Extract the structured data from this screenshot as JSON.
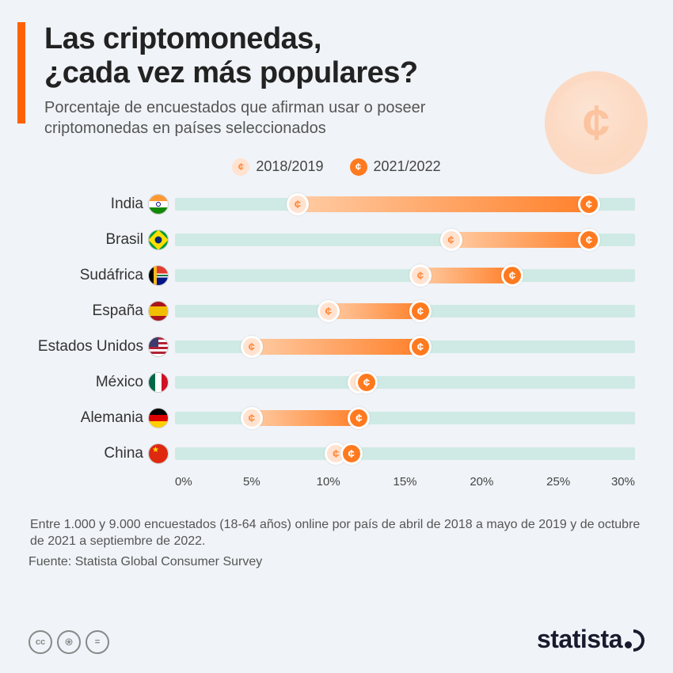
{
  "title_line1": "Las criptomonedas,",
  "title_line2": "¿cada vez más populares?",
  "subtitle": "Porcentaje de encuestados que afirman usar o poseer criptomonedas en países seleccionados",
  "legend": {
    "period_a": "2018/2019",
    "period_b": "2021/2022",
    "color_a_fill": "#ffe3d0",
    "color_a_text": "#ff8a3d",
    "color_b_fill": "#ff7a1f",
    "color_b_text": "#ffffff"
  },
  "chart": {
    "type": "dumbbell",
    "xmin": 0,
    "xmax": 30,
    "xtick_step": 5,
    "xticks": [
      "0%",
      "5%",
      "10%",
      "15%",
      "20%",
      "25%",
      "30%"
    ],
    "track_color": "#cfeae4",
    "bar_gradient_from": "#ffcba3",
    "bar_gradient_to": "#ff812b",
    "rows": [
      {
        "label": "India",
        "a": 8,
        "b": 27,
        "flag": "india"
      },
      {
        "label": "Brasil",
        "a": 18,
        "b": 27,
        "flag": "brasil"
      },
      {
        "label": "Sudáfrica",
        "a": 16,
        "b": 22,
        "flag": "sudafrica"
      },
      {
        "label": "España",
        "a": 10,
        "b": 16,
        "flag": "espana"
      },
      {
        "label": "Estados Unidos",
        "a": 5,
        "b": 16,
        "flag": "usa"
      },
      {
        "label": "México",
        "a": 12,
        "b": 12.5,
        "flag": "mexico"
      },
      {
        "label": "Alemania",
        "a": 5,
        "b": 12,
        "flag": "alemania"
      },
      {
        "label": "China",
        "a": 10.5,
        "b": 11.5,
        "flag": "china"
      }
    ]
  },
  "footnote": "Entre 1.000 y 9.000 encuestados (18-64 años) online por país de abril de 2018 a mayo de 2019 y de octubre de 2021 a septiembre de 2022.",
  "source": "Fuente: Statista Global Consumer Survey",
  "brand": "statista",
  "colors": {
    "accent": "#ff6200",
    "background": "#f0f3f7",
    "text_primary": "#222222",
    "text_secondary": "#555555"
  }
}
